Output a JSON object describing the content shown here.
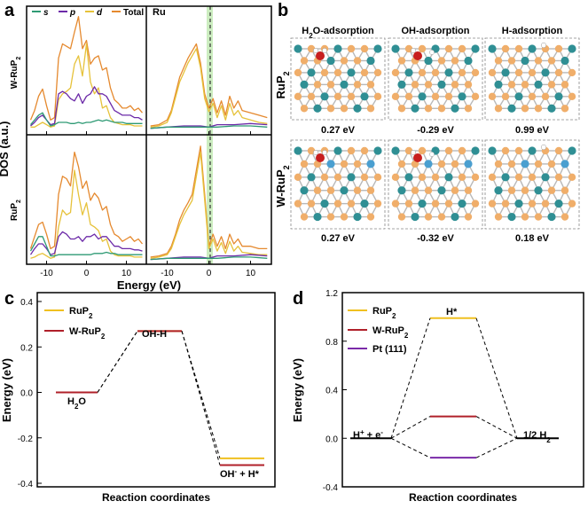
{
  "panel_labels": {
    "a": "a",
    "b": "b",
    "c": "c",
    "d": "d"
  },
  "chart_data": [
    {
      "id": "a",
      "type": "line",
      "title": "",
      "xlabel": "Energy (eV)",
      "ylabel": "DOS (a.u.)",
      "xlim_left": [
        -15,
        15
      ],
      "xlim_right": [
        -15,
        15
      ],
      "xticks": [
        "-10",
        "0",
        "10"
      ],
      "xtick_values": [
        -10,
        0,
        10
      ],
      "legend": [
        {
          "name": "s",
          "color": "#2e9a74"
        },
        {
          "name": "p",
          "color": "#6c2aa8"
        },
        {
          "name": "d",
          "color": "#e6c23a"
        },
        {
          "name": "Total",
          "color": "#e5892e"
        }
      ],
      "rows": [
        "W-RuP2",
        "RuP2"
      ],
      "right_label": "Ru",
      "fermi_level": 0,
      "series": [
        {
          "row": 0,
          "side": "left",
          "name": "Total",
          "color": "#e5892e",
          "x": [
            -14,
            -13,
            -12,
            -11,
            -10,
            -9,
            -8,
            -7,
            -6,
            -5,
            -4,
            -3,
            -2,
            -1,
            0,
            1,
            2,
            3,
            4,
            5,
            6,
            7,
            8,
            9,
            10,
            11,
            12,
            13,
            14
          ],
          "y": [
            0.08,
            0.16,
            0.28,
            0.34,
            0.2,
            0.08,
            0.1,
            0.6,
            0.72,
            0.7,
            0.68,
            0.82,
            0.95,
            0.68,
            0.75,
            0.55,
            0.6,
            0.62,
            0.5,
            0.52,
            0.35,
            0.25,
            0.22,
            0.18,
            0.18,
            0.2,
            0.16,
            0.18,
            0.14
          ]
        },
        {
          "row": 0,
          "side": "left",
          "name": "d",
          "color": "#e6c23a",
          "x": [
            -14,
            -13,
            -12,
            -11,
            -10,
            -9,
            -8,
            -7,
            -6,
            -5,
            -4,
            -3,
            -2,
            -1,
            0,
            1,
            2,
            3,
            4,
            5,
            6,
            7,
            8,
            9,
            10,
            11,
            12,
            13,
            14
          ],
          "y": [
            0.02,
            0.02,
            0.04,
            0.06,
            0.04,
            0.02,
            0.03,
            0.25,
            0.3,
            0.32,
            0.35,
            0.55,
            0.62,
            0.45,
            0.72,
            0.4,
            0.3,
            0.35,
            0.18,
            0.2,
            0.1,
            0.06,
            0.05,
            0.04,
            0.04,
            0.04,
            0.03,
            0.03,
            0.03
          ]
        },
        {
          "row": 0,
          "side": "left",
          "name": "p",
          "color": "#6c2aa8",
          "x": [
            -14,
            -13,
            -12,
            -11,
            -10,
            -9,
            -8,
            -7,
            -6,
            -5,
            -4,
            -3,
            -2,
            -1,
            0,
            1,
            2,
            3,
            4,
            5,
            6,
            7,
            8,
            9,
            10,
            11,
            12,
            13,
            14
          ],
          "y": [
            0.03,
            0.06,
            0.1,
            0.12,
            0.08,
            0.04,
            0.05,
            0.3,
            0.32,
            0.3,
            0.26,
            0.24,
            0.3,
            0.22,
            0.28,
            0.3,
            0.36,
            0.3,
            0.3,
            0.28,
            0.22,
            0.16,
            0.14,
            0.12,
            0.12,
            0.12,
            0.1,
            0.1,
            0.08
          ]
        },
        {
          "row": 0,
          "side": "left",
          "name": "s",
          "color": "#2e9a74",
          "x": [
            -14,
            -13,
            -12,
            -11,
            -10,
            -9,
            -8,
            -7,
            -6,
            -5,
            -4,
            -3,
            -2,
            -1,
            0,
            1,
            2,
            3,
            4,
            5,
            6,
            7,
            8,
            9,
            10,
            11,
            12,
            13,
            14
          ],
          "y": [
            0.04,
            0.08,
            0.12,
            0.14,
            0.08,
            0.03,
            0.04,
            0.06,
            0.06,
            0.06,
            0.05,
            0.05,
            0.06,
            0.05,
            0.06,
            0.06,
            0.07,
            0.08,
            0.07,
            0.08,
            0.07,
            0.06,
            0.06,
            0.06,
            0.05,
            0.05,
            0.05,
            0.05,
            0.05
          ]
        },
        {
          "row": 0,
          "side": "right",
          "name": "Total",
          "color": "#e5892e",
          "x": [
            -14,
            -12,
            -10,
            -9,
            -8,
            -7,
            -6,
            -5,
            -4,
            -3,
            -2,
            -1,
            0,
            1,
            2,
            3,
            4,
            5,
            6,
            7,
            8,
            10,
            12,
            14
          ],
          "y": [
            0.03,
            0.04,
            0.08,
            0.16,
            0.3,
            0.44,
            0.52,
            0.6,
            0.66,
            0.72,
            0.56,
            0.3,
            0.18,
            0.26,
            0.14,
            0.24,
            0.12,
            0.28,
            0.18,
            0.24,
            0.16,
            0.14,
            0.12,
            0.1
          ]
        },
        {
          "row": 0,
          "side": "right",
          "name": "d",
          "color": "#e6c23a",
          "x": [
            -14,
            -12,
            -10,
            -9,
            -8,
            -7,
            -6,
            -5,
            -4,
            -3,
            -2,
            -1,
            0,
            1,
            2,
            3,
            4,
            5,
            6,
            7,
            8,
            10,
            12,
            14
          ],
          "y": [
            0.02,
            0.03,
            0.06,
            0.14,
            0.27,
            0.4,
            0.48,
            0.56,
            0.62,
            0.68,
            0.52,
            0.26,
            0.15,
            0.22,
            0.1,
            0.2,
            0.08,
            0.22,
            0.12,
            0.16,
            0.1,
            0.08,
            0.06,
            0.05
          ]
        },
        {
          "row": 0,
          "side": "right",
          "name": "p",
          "color": "#6c2aa8",
          "x": [
            -14,
            -10,
            -6,
            -2,
            0,
            2,
            6,
            10,
            14
          ],
          "y": [
            0.01,
            0.02,
            0.03,
            0.03,
            0.02,
            0.04,
            0.04,
            0.05,
            0.04
          ]
        },
        {
          "row": 0,
          "side": "right",
          "name": "s",
          "color": "#2e9a74",
          "x": [
            -14,
            -10,
            -6,
            -2,
            0,
            2,
            6,
            10,
            14
          ],
          "y": [
            0.01,
            0.02,
            0.02,
            0.02,
            0.02,
            0.02,
            0.03,
            0.03,
            0.02
          ]
        },
        {
          "row": 1,
          "side": "left",
          "name": "Total",
          "color": "#e5892e",
          "x": [
            -14,
            -13,
            -12,
            -11,
            -10,
            -9,
            -8,
            -7,
            -6,
            -5,
            -4,
            -3,
            -2,
            -1,
            0,
            1,
            2,
            3,
            4,
            5,
            6,
            7,
            8,
            9,
            10,
            11,
            12,
            13,
            14
          ],
          "y": [
            0.1,
            0.2,
            0.3,
            0.32,
            0.22,
            0.1,
            0.12,
            0.55,
            0.7,
            0.68,
            0.62,
            0.9,
            0.78,
            0.6,
            0.66,
            0.5,
            0.56,
            0.52,
            0.42,
            0.45,
            0.3,
            0.22,
            0.2,
            0.16,
            0.18,
            0.2,
            0.16,
            0.18,
            0.14
          ]
        },
        {
          "row": 1,
          "side": "left",
          "name": "d",
          "color": "#e6c23a",
          "x": [
            -14,
            -13,
            -12,
            -11,
            -10,
            -9,
            -8,
            -7,
            -6,
            -5,
            -4,
            -3,
            -2,
            -1,
            0,
            1,
            2,
            3,
            4,
            5,
            6,
            7,
            8,
            9,
            10,
            11,
            12,
            13,
            14
          ],
          "y": [
            0.02,
            0.03,
            0.05,
            0.06,
            0.04,
            0.02,
            0.03,
            0.28,
            0.42,
            0.38,
            0.4,
            0.75,
            0.55,
            0.38,
            0.48,
            0.3,
            0.28,
            0.25,
            0.16,
            0.18,
            0.08,
            0.05,
            0.04,
            0.04,
            0.04,
            0.04,
            0.03,
            0.03,
            0.03
          ]
        },
        {
          "row": 1,
          "side": "left",
          "name": "p",
          "color": "#6c2aa8",
          "x": [
            -14,
            -13,
            -12,
            -11,
            -10,
            -9,
            -8,
            -7,
            -6,
            -5,
            -4,
            -3,
            -2,
            -1,
            0,
            1,
            2,
            3,
            4,
            5,
            6,
            7,
            8,
            9,
            10,
            11,
            12,
            13,
            14
          ],
          "y": [
            0.05,
            0.1,
            0.14,
            0.14,
            0.1,
            0.05,
            0.06,
            0.2,
            0.24,
            0.22,
            0.18,
            0.18,
            0.2,
            0.16,
            0.2,
            0.2,
            0.22,
            0.18,
            0.2,
            0.2,
            0.16,
            0.12,
            0.12,
            0.1,
            0.1,
            0.1,
            0.09,
            0.09,
            0.08
          ]
        },
        {
          "row": 1,
          "side": "left",
          "name": "s",
          "color": "#2e9a74",
          "x": [
            -14,
            -13,
            -12,
            -11,
            -10,
            -9,
            -8,
            -7,
            -6,
            -5,
            -4,
            -3,
            -2,
            -1,
            0,
            1,
            2,
            3,
            4,
            5,
            6,
            7,
            8,
            9,
            10,
            11,
            12,
            13,
            14
          ],
          "y": [
            0.08,
            0.14,
            0.2,
            0.2,
            0.12,
            0.04,
            0.04,
            0.05,
            0.05,
            0.05,
            0.05,
            0.05,
            0.05,
            0.05,
            0.05,
            0.05,
            0.06,
            0.06,
            0.06,
            0.07,
            0.06,
            0.06,
            0.05,
            0.05,
            0.05,
            0.05,
            0.05,
            0.05,
            0.05
          ]
        },
        {
          "row": 1,
          "side": "right",
          "name": "Total",
          "color": "#e5892e",
          "x": [
            -14,
            -12,
            -10,
            -9,
            -8,
            -7,
            -6,
            -5,
            -4,
            -3,
            -2,
            -1,
            0,
            1,
            2,
            3,
            4,
            5,
            6,
            7,
            8,
            10,
            12,
            14
          ],
          "y": [
            0.03,
            0.04,
            0.06,
            0.12,
            0.22,
            0.34,
            0.42,
            0.48,
            0.55,
            0.75,
            0.95,
            0.55,
            0.12,
            0.22,
            0.12,
            0.2,
            0.1,
            0.22,
            0.14,
            0.18,
            0.12,
            0.12,
            0.1,
            0.1
          ]
        },
        {
          "row": 1,
          "side": "right",
          "name": "d",
          "color": "#e6c23a",
          "x": [
            -14,
            -12,
            -10,
            -9,
            -8,
            -7,
            -6,
            -5,
            -4,
            -3,
            -2,
            -1,
            0,
            1,
            2,
            3,
            4,
            5,
            6,
            7,
            8,
            10,
            12,
            14
          ],
          "y": [
            0.02,
            0.03,
            0.05,
            0.1,
            0.2,
            0.3,
            0.38,
            0.44,
            0.5,
            0.7,
            0.9,
            0.5,
            0.1,
            0.18,
            0.08,
            0.15,
            0.06,
            0.16,
            0.08,
            0.12,
            0.07,
            0.06,
            0.05,
            0.05
          ]
        },
        {
          "row": 1,
          "side": "right",
          "name": "p",
          "color": "#6c2aa8",
          "x": [
            -14,
            -10,
            -6,
            -2,
            0,
            2,
            6,
            10,
            14
          ],
          "y": [
            0.01,
            0.02,
            0.03,
            0.03,
            0.02,
            0.04,
            0.04,
            0.05,
            0.04
          ]
        },
        {
          "row": 1,
          "side": "right",
          "name": "s",
          "color": "#2e9a74",
          "x": [
            -14,
            -10,
            -6,
            -2,
            0,
            2,
            6,
            10,
            14
          ],
          "y": [
            0.01,
            0.02,
            0.02,
            0.02,
            0.02,
            0.02,
            0.03,
            0.03,
            0.02
          ]
        }
      ]
    },
    {
      "id": "c",
      "type": "line",
      "title": "",
      "xlabel": "Reaction coordinates",
      "ylabel": "Energy (eV)",
      "ylim": [
        -0.4,
        0.4
      ],
      "yticks": [
        "-0.4",
        "-0.2",
        "0.0",
        "0.2",
        "0.4"
      ],
      "ytick_values": [
        -0.4,
        -0.2,
        0.0,
        0.2,
        0.4
      ],
      "states": [
        "H2O",
        "OH-H",
        "OH- + H*"
      ],
      "series": [
        {
          "name": "RuP2",
          "color": "#f0c020",
          "values": [
            0.0,
            0.27,
            -0.29
          ]
        },
        {
          "name": "W-RuP2",
          "color": "#b0202a",
          "values": [
            0.0,
            0.27,
            -0.32
          ]
        }
      ]
    },
    {
      "id": "d",
      "type": "line",
      "title": "",
      "xlabel": "Reaction coordinates",
      "ylabel": "Energy (eV)",
      "ylim": [
        -0.4,
        1.2
      ],
      "yticks": [
        "-0.4",
        "0.0",
        "0.4",
        "0.8",
        "1.2"
      ],
      "ytick_values": [
        -0.4,
        0.0,
        0.4,
        0.8,
        1.2
      ],
      "states": [
        "H+ + e-",
        "H*",
        "1/2 H2"
      ],
      "series": [
        {
          "name": "RuP2",
          "color": "#f0c020",
          "values": [
            0.0,
            0.99,
            0.0
          ]
        },
        {
          "name": "W-RuP2",
          "color": "#b0202a",
          "values": [
            0.0,
            0.18,
            0.0
          ]
        },
        {
          "name": "Pt (111)",
          "color": "#7a2aa8",
          "values": [
            0.0,
            -0.16,
            0.0
          ]
        }
      ]
    }
  ],
  "panel_b": {
    "columns": [
      "H2O-adsorption",
      "OH-adsorption",
      "H-adsorption"
    ],
    "rows": [
      "RuP2",
      "W-RuP2"
    ],
    "energies": [
      [
        "0.27 eV",
        "-0.29 eV",
        "0.99 eV"
      ],
      [
        "0.27 eV",
        "-0.32 eV",
        "0.18 eV"
      ]
    ]
  },
  "colors": {
    "P_atom": "#f0ae6a",
    "Ru_atom": "#2f8f94",
    "W_atom": "#4a9fd0",
    "O_atom": "#c81e1e",
    "H_atom": "#ffffff",
    "fermi_band": "#bfe8b0",
    "axis": "#000000"
  }
}
